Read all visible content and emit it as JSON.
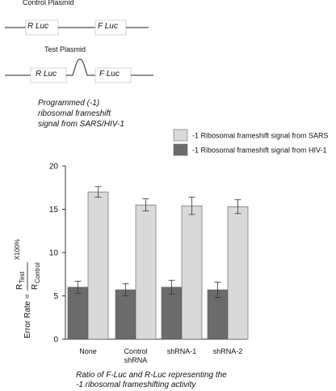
{
  "schematic": {
    "control_label": "Control Plasmid",
    "test_label": "Test Plasmid",
    "rluc": "R Luc",
    "fluc": "F Luc",
    "signal_caption": [
      "Programmed (-1)",
      "ribosomal frameshift",
      "signal from SARS/HIV-1"
    ]
  },
  "chart_data": {
    "type": "bar",
    "categories": [
      "None",
      "Control shRNA",
      "shRNA-1",
      "shRNA-2"
    ],
    "category_lines": [
      [
        "None"
      ],
      [
        "Control",
        "shRNA"
      ],
      [
        "shRNA-1"
      ],
      [
        "shRNA-2"
      ]
    ],
    "series": [
      {
        "name": "-1 Ribosomal frameshift signal from HIV-1",
        "values": [
          6.0,
          5.7,
          6.0,
          5.7
        ],
        "errors": [
          0.7,
          0.7,
          0.8,
          0.9
        ],
        "color": "#6b6b6b"
      },
      {
        "name": "-1 Ribosomal frameshift signal from SARS",
        "values": [
          17.0,
          15.5,
          15.4,
          15.3
        ],
        "errors": [
          0.6,
          0.7,
          1.0,
          0.8
        ],
        "color": "#d9d9d9"
      }
    ],
    "legend_order": [
      1,
      0
    ],
    "ylim": [
      0,
      20
    ],
    "yticks": [
      0,
      5,
      10,
      15,
      20
    ],
    "ylabel": {
      "prefix": "Error Rate =",
      "num_main": "R",
      "num_sub": "Test",
      "den_main": "R",
      "den_sub": "Control",
      "suffix": "X100%"
    },
    "caption": [
      "Ratio of F-Luc and R-Luc representing the",
      "-1 ribosomal frameshifting activity"
    ]
  }
}
